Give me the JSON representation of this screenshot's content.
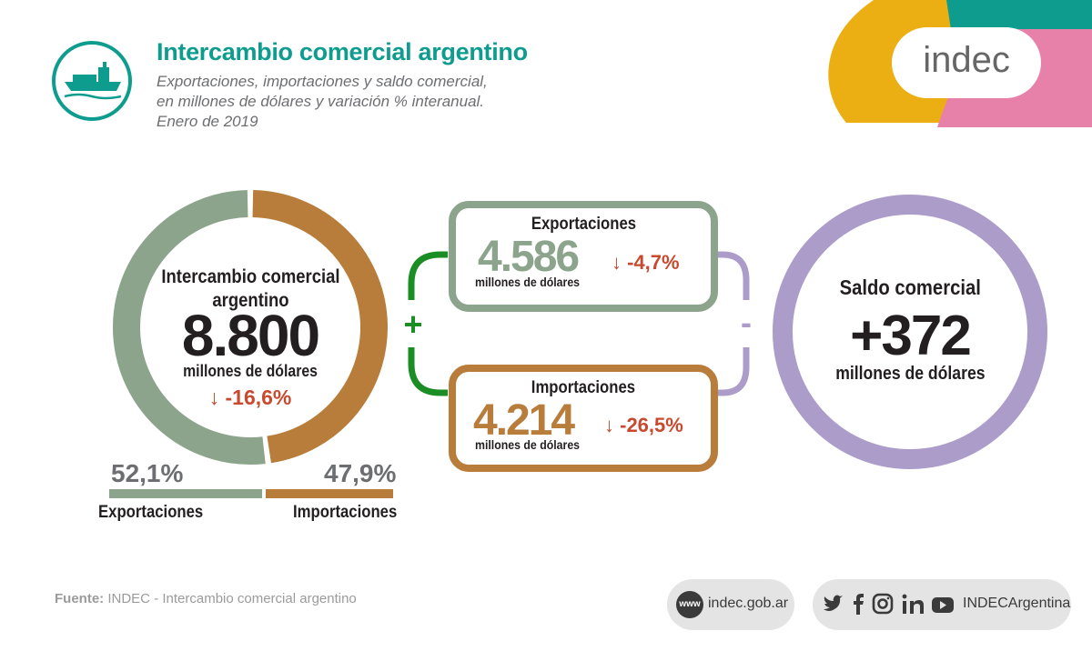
{
  "header": {
    "title": "Intercambio comercial argentino",
    "subtitle_line1": "Exportaciones, importaciones y saldo comercial,",
    "subtitle_line2": "en millones de dólares y variación % interanual.",
    "subtitle_line3": "Enero de 2019",
    "icon": "ship-icon"
  },
  "logo": {
    "text": "indec"
  },
  "colors": {
    "teal": "#0e9c8f",
    "exports": "#8ba48b",
    "imports": "#b87d3b",
    "saldo": "#ab9cc9",
    "negative": "#c9492e",
    "plus": "#1a8e24",
    "yellow": "#ebaf13",
    "pink": "#e781aa"
  },
  "donut": {
    "center_label_line1": "Intercambio comercial",
    "center_label_line2": "argentino",
    "center_value": "8.800",
    "center_unit": "millones de dólares",
    "center_variation": "↓ -16,6%",
    "exports_pct": "52,1%",
    "imports_pct": "47,9%",
    "exports_label": "Exportaciones",
    "imports_label": "Importaciones"
  },
  "exports_box": {
    "label": "Exportaciones",
    "value": "4.586",
    "unit": "millones de dólares",
    "variation": "↓ -4,7%"
  },
  "imports_box": {
    "label": "Importaciones",
    "value": "4.214",
    "unit": "millones de dólares",
    "variation": "↓ -26,5%"
  },
  "operators": {
    "plus": "+",
    "minus": "-"
  },
  "saldo": {
    "label": "Saldo comercial",
    "value": "+372",
    "unit": "millones de dólares"
  },
  "footer": {
    "source_label": "Fuente:",
    "source_text": " INDEC - Intercambio comercial argentino",
    "web_badge": "www",
    "website": "indec.gob.ar",
    "social_handle": "INDECArgentina",
    "social_icons": [
      "twitter-icon",
      "facebook-icon",
      "instagram-icon",
      "linkedin-icon",
      "youtube-icon"
    ]
  },
  "chart_data": {
    "type": "pie",
    "title": "Intercambio comercial argentino",
    "categories": [
      "Exportaciones",
      "Importaciones"
    ],
    "values": [
      52.1,
      47.9
    ],
    "units": "%",
    "total": 8800,
    "series": [
      {
        "name": "Exportaciones",
        "value": 4586,
        "variation_pct": -4.7
      },
      {
        "name": "Importaciones",
        "value": 4214,
        "variation_pct": -26.5
      }
    ],
    "total_variation_pct": -16.6,
    "saldo_comercial": 372
  }
}
